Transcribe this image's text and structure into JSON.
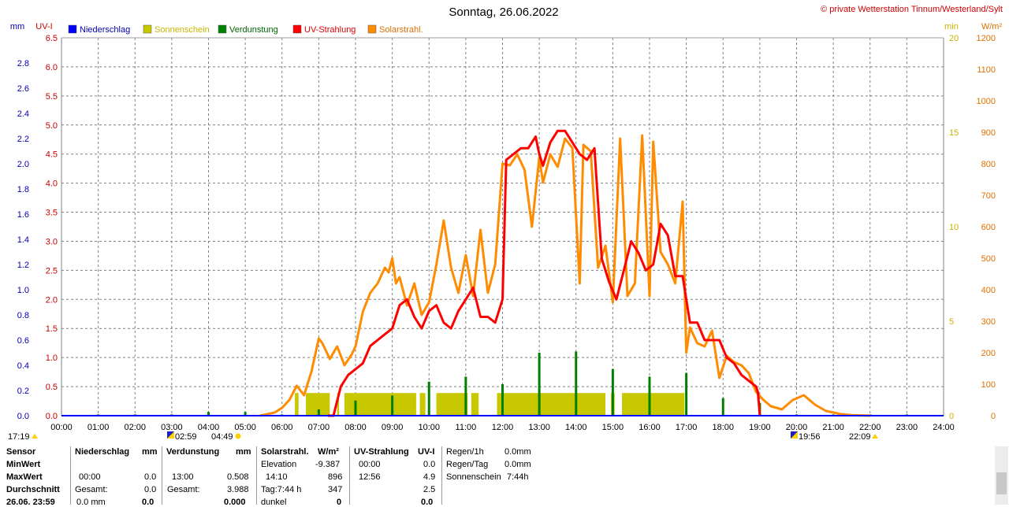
{
  "chart_data": {
    "type": "line",
    "title": "Sonntag, 26.06.2022",
    "copyright": "© private Wetterstation Tinnum/Westerland/Sylt",
    "x_ticks": [
      "00:00",
      "01:00",
      "02:00",
      "03:00",
      "04:00",
      "05:00",
      "06:00",
      "07:00",
      "08:00",
      "09:00",
      "10:00",
      "11:00",
      "12:00",
      "13:00",
      "14:00",
      "15:00",
      "16:00",
      "17:00",
      "18:00",
      "19:00",
      "20:00",
      "21:00",
      "22:00",
      "23:00",
      "24:00"
    ],
    "axes": {
      "mm": {
        "label": "mm",
        "range": [
          0,
          3.0
        ],
        "ticks": [
          "0.0",
          "0.2",
          "0.4",
          "0.6",
          "0.8",
          "1.0",
          "1.2",
          "1.4",
          "1.6",
          "1.8",
          "2.0",
          "2.2",
          "2.4",
          "2.6",
          "2.8"
        ],
        "color": "#0000b0"
      },
      "uvi": {
        "label": "UV-I",
        "range": [
          0,
          6.5
        ],
        "ticks": [
          "0.0",
          "0.5",
          "1.0",
          "1.5",
          "2.0",
          "2.5",
          "3.0",
          "3.5",
          "4.0",
          "4.5",
          "5.0",
          "5.5",
          "6.0",
          "6.5"
        ],
        "color": "#cc0000"
      },
      "min": {
        "label": "min",
        "range": [
          0,
          20
        ],
        "ticks": [
          "0",
          "5",
          "10",
          "15",
          "20"
        ],
        "color": "#c8b400"
      },
      "wm2": {
        "label": "W/m²",
        "range": [
          0,
          1200
        ],
        "ticks": [
          "0",
          "100",
          "200",
          "300",
          "400",
          "500",
          "600",
          "700",
          "800",
          "900",
          "1000",
          "1100",
          "1200"
        ],
        "color": "#e07000"
      }
    },
    "legend": [
      {
        "name": "Niederschlag",
        "color": "#0000ff",
        "text_color": "#0000b0"
      },
      {
        "name": "Sonnenschein",
        "color": "#c8c800",
        "text_color": "#c8b400"
      },
      {
        "name": "Verdunstung",
        "color": "#008000",
        "text_color": "#006400"
      },
      {
        "name": "UV-Strahlung",
        "color": "#ff0000",
        "text_color": "#dd0000"
      },
      {
        "name": "Solarstrahl.",
        "color": "#ff8c00",
        "text_color": "#e07000"
      }
    ],
    "series": [
      {
        "name": "Solarstrahl.",
        "axis": "wm2",
        "color": "#ff8c00",
        "x": [
          5.4,
          5.8,
          6.0,
          6.2,
          6.4,
          6.6,
          6.8,
          7.0,
          7.1,
          7.3,
          7.5,
          7.7,
          7.9,
          8.0,
          8.2,
          8.4,
          8.6,
          8.8,
          8.9,
          9.0,
          9.1,
          9.2,
          9.4,
          9.6,
          9.8,
          10.0,
          10.2,
          10.4,
          10.6,
          10.8,
          11.0,
          11.2,
          11.4,
          11.6,
          11.8,
          12.0,
          12.2,
          12.4,
          12.6,
          12.8,
          13.0,
          13.1,
          13.3,
          13.5,
          13.7,
          13.9,
          14.1,
          14.2,
          14.4,
          14.6,
          14.8,
          15.0,
          15.2,
          15.4,
          15.6,
          15.8,
          16.0,
          16.1,
          16.3,
          16.5,
          16.7,
          16.9,
          17.0,
          17.1,
          17.3,
          17.5,
          17.7,
          17.9,
          18.1,
          18.3,
          18.5,
          18.7,
          18.9,
          19.1,
          19.3,
          19.6,
          19.9,
          20.2,
          20.5,
          20.8,
          21.2,
          21.5,
          22.0
        ],
        "y": [
          0,
          10,
          25,
          50,
          95,
          65,
          140,
          245,
          230,
          180,
          220,
          160,
          195,
          220,
          330,
          390,
          420,
          470,
          455,
          500,
          420,
          440,
          350,
          420,
          320,
          360,
          480,
          620,
          470,
          390,
          510,
          380,
          590,
          390,
          480,
          800,
          795,
          830,
          780,
          600,
          820,
          740,
          830,
          790,
          880,
          850,
          420,
          860,
          840,
          470,
          540,
          360,
          880,
          380,
          420,
          890,
          380,
          870,
          520,
          480,
          420,
          680,
          200,
          280,
          230,
          220,
          270,
          120,
          190,
          170,
          160,
          135,
          75,
          50,
          30,
          20,
          50,
          65,
          35,
          15,
          5,
          2,
          0
        ]
      },
      {
        "name": "UV-Strahlung",
        "axis": "uvi",
        "color": "#ff0000",
        "x": [
          7.25,
          7.4,
          7.6,
          7.8,
          8.0,
          8.2,
          8.4,
          8.6,
          8.8,
          9.0,
          9.2,
          9.4,
          9.6,
          9.8,
          10.0,
          10.2,
          10.4,
          10.6,
          10.8,
          11.0,
          11.2,
          11.4,
          11.6,
          11.8,
          12.0,
          12.1,
          12.3,
          12.5,
          12.7,
          12.9,
          13.0,
          13.1,
          13.3,
          13.5,
          13.7,
          13.9,
          14.1,
          14.3,
          14.5,
          14.7,
          14.9,
          15.1,
          15.3,
          15.5,
          15.7,
          15.9,
          16.1,
          16.3,
          16.5,
          16.7,
          16.9,
          17.0,
          17.1,
          17.3,
          17.5,
          17.7,
          17.9,
          18.1,
          18.3,
          18.5,
          18.7,
          18.9,
          18.95,
          19.0
        ],
        "y": [
          0,
          0,
          0.5,
          0.7,
          0.8,
          0.9,
          1.2,
          1.3,
          1.4,
          1.5,
          1.9,
          2.0,
          1.7,
          1.5,
          1.8,
          1.9,
          1.6,
          1.5,
          1.8,
          2.0,
          2.2,
          1.7,
          1.7,
          1.6,
          2.0,
          4.4,
          4.5,
          4.6,
          4.6,
          4.8,
          4.5,
          4.3,
          4.7,
          4.9,
          4.9,
          4.7,
          4.5,
          4.4,
          4.6,
          2.7,
          2.3,
          2.0,
          2.5,
          3.0,
          2.8,
          2.5,
          2.6,
          3.3,
          3.1,
          2.4,
          2.4,
          2.0,
          1.6,
          1.6,
          1.3,
          1.3,
          1.3,
          1.0,
          0.9,
          0.7,
          0.6,
          0.5,
          0.4,
          0.0
        ]
      }
    ],
    "sunshine_minutes_blocks": [
      [
        6.35,
        6.45
      ],
      [
        6.65,
        7.3
      ],
      [
        7.5,
        7.55
      ],
      [
        7.7,
        9.65
      ],
      [
        9.75,
        9.9
      ],
      [
        10.2,
        11.05
      ],
      [
        11.15,
        11.35
      ],
      [
        11.85,
        14.8
      ],
      [
        14.95,
        15.05
      ],
      [
        15.25,
        16.95
      ]
    ],
    "sunshine_block_height_min": 1.2,
    "evaporation_spikes": [
      {
        "x": 1.0,
        "v": 0.01
      },
      {
        "x": 2.0,
        "v": 0.01
      },
      {
        "x": 3.0,
        "v": 0.01
      },
      {
        "x": 4.0,
        "v": 0.03
      },
      {
        "x": 5.0,
        "v": 0.03
      },
      {
        "x": 6.0,
        "v": 0.01
      },
      {
        "x": 7.0,
        "v": 0.05
      },
      {
        "x": 8.0,
        "v": 0.12
      },
      {
        "x": 9.0,
        "v": 0.16
      },
      {
        "x": 10.0,
        "v": 0.27
      },
      {
        "x": 11.0,
        "v": 0.31
      },
      {
        "x": 12.0,
        "v": 0.25
      },
      {
        "x": 13.0,
        "v": 0.5
      },
      {
        "x": 14.0,
        "v": 0.51
      },
      {
        "x": 15.0,
        "v": 0.37
      },
      {
        "x": 16.0,
        "v": 0.31
      },
      {
        "x": 17.0,
        "v": 0.34
      },
      {
        "x": 18.0,
        "v": 0.14
      },
      {
        "x": 19.0,
        "v": 0.1
      },
      {
        "x": 20.0,
        "v": 0.01
      },
      {
        "x": 21.0,
        "v": 0.01
      },
      {
        "x": 22.0,
        "v": 0.01
      },
      {
        "x": 23.0,
        "v": 0.01
      }
    ],
    "marker_row": [
      {
        "text": "17:19",
        "icon": "moon"
      },
      {
        "text": "02:59",
        "icon": "sunrise"
      },
      {
        "text": "04:49",
        "icon": "sun"
      },
      {
        "text": "19:56",
        "icon": "sunset"
      },
      {
        "text": "22:09",
        "icon": "moon"
      }
    ]
  },
  "stats": {
    "row_labels": [
      "Sensor",
      "MinWert",
      "MaxWert",
      "Durchschnitt",
      "26.06. 23:59"
    ],
    "niederschlag": {
      "header": "Niederschlag",
      "unit": "mm",
      "max_time": "00:00",
      "max_val": "0.0",
      "ges_label": "Gesamt:",
      "ges_val": "0.0",
      "last_a": "0.0 mm",
      "last_b": "0.0"
    },
    "verdunstung": {
      "header": "Verdunstung",
      "unit": "mm",
      "max_time": "13:00",
      "max_val": "0.508",
      "ges_label": "Gesamt:",
      "ges_val": "3.988",
      "last_b": "0.000"
    },
    "solar": {
      "header": "Solarstrahl.",
      "unit": "W/m²",
      "elev_label": "Elevation",
      "elev_val": "-9.387",
      "max_time": "14:10",
      "max_val": "896",
      "tag_label": "Tag:7:44 h",
      "tag_val": "347",
      "last_a": "dunkel",
      "last_b": "0"
    },
    "uv": {
      "header": "UV-Strahlung",
      "unit": "UV-I",
      "min_time": "00:00",
      "min_val": "0.0",
      "max_time": "12:56",
      "max_val": "4.9",
      "avg_val": "2.5",
      "last_b": "0.0"
    },
    "rain": {
      "r1_label": "Regen/1h",
      "r1_val": "0.0mm",
      "r2_label": "Regen/Tag",
      "r2_val": "0.0mm",
      "r3_label": "Sonnenschein",
      "r3_val": "7:44h"
    }
  }
}
